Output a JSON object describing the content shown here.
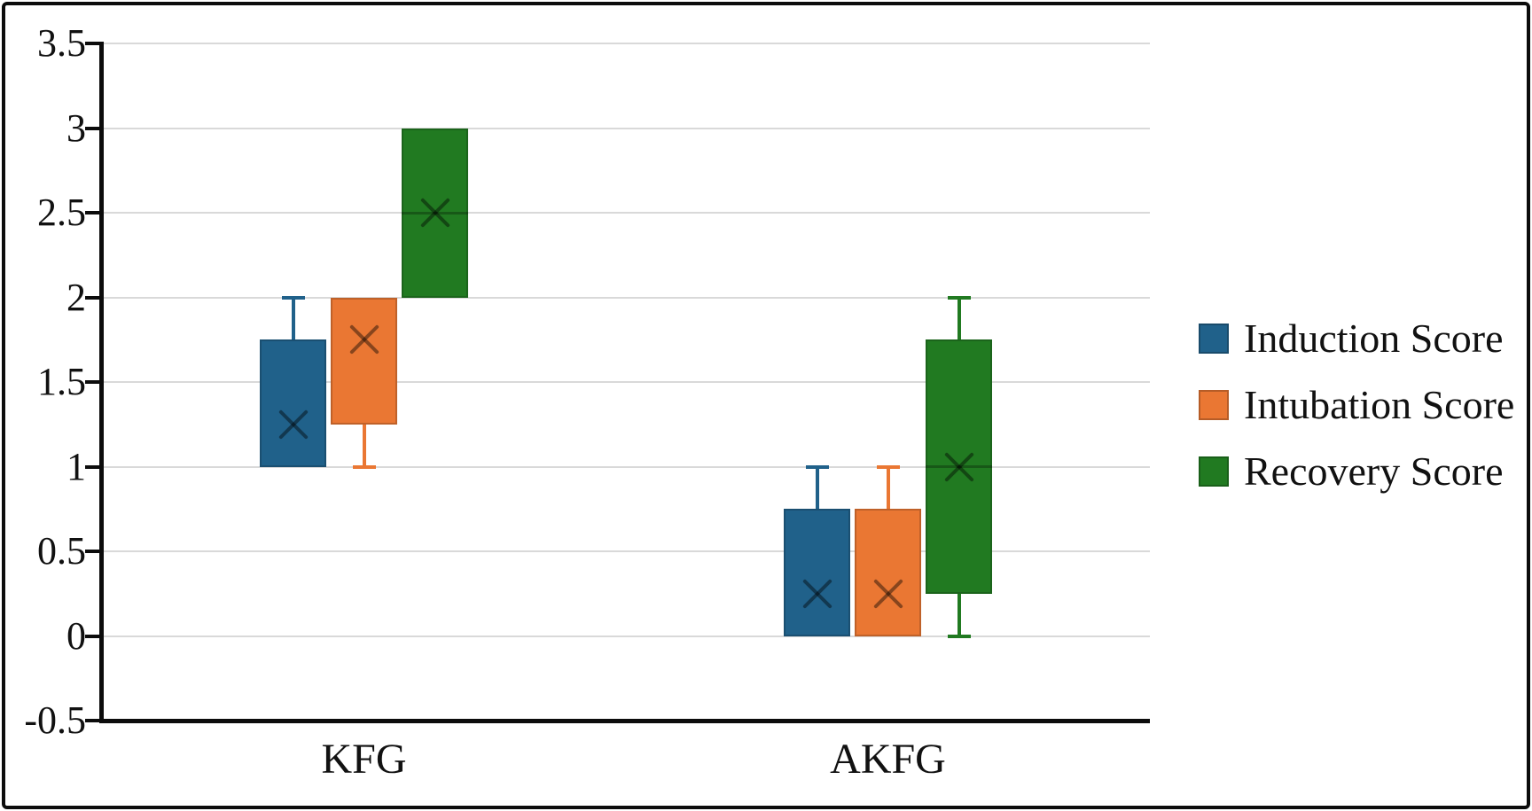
{
  "figure": {
    "background": "#ffffff",
    "border_color": "#0c0c0c",
    "gridline_color": "#d9d9d9"
  },
  "chart_data": {
    "type": "boxplot",
    "title": "",
    "xlabel": "",
    "ylabel": "",
    "categories": [
      "KFG",
      "AKFG"
    ],
    "y_ticks": [
      "3.5",
      "3",
      "2.5",
      "2",
      "1.5",
      "1",
      "0.5",
      "0",
      "-0.5"
    ],
    "ylim": [
      -0.5,
      3.5
    ],
    "grid": true,
    "legend_position": "right",
    "series": [
      {
        "name": "Induction Score",
        "color": "#20618A",
        "boxes": [
          {
            "category": "KFG",
            "q1": 1.0,
            "q3": 1.75,
            "median": null,
            "mean": 1.25,
            "whisker_low": null,
            "whisker_high": 2.0
          },
          {
            "category": "AKFG",
            "q1": 0.0,
            "q3": 0.75,
            "median": null,
            "mean": 0.25,
            "whisker_low": null,
            "whisker_high": 1.0
          }
        ]
      },
      {
        "name": "Intubation Score",
        "color": "#EA7733",
        "boxes": [
          {
            "category": "KFG",
            "q1": 1.25,
            "q3": 2.0,
            "median": null,
            "mean": 1.75,
            "whisker_low": 1.0,
            "whisker_high": null
          },
          {
            "category": "AKFG",
            "q1": 0.0,
            "q3": 0.75,
            "median": null,
            "mean": 0.25,
            "whisker_low": null,
            "whisker_high": 1.0
          }
        ]
      },
      {
        "name": "Recovery Score",
        "color": "#217A21",
        "boxes": [
          {
            "category": "KFG",
            "q1": 2.0,
            "q3": 3.0,
            "median": 2.5,
            "mean": 2.5,
            "whisker_low": null,
            "whisker_high": null
          },
          {
            "category": "AKFG",
            "q1": 0.25,
            "q3": 1.75,
            "median": 1.0,
            "mean": 1.0,
            "whisker_low": 0.0,
            "whisker_high": 2.0
          }
        ]
      }
    ]
  }
}
